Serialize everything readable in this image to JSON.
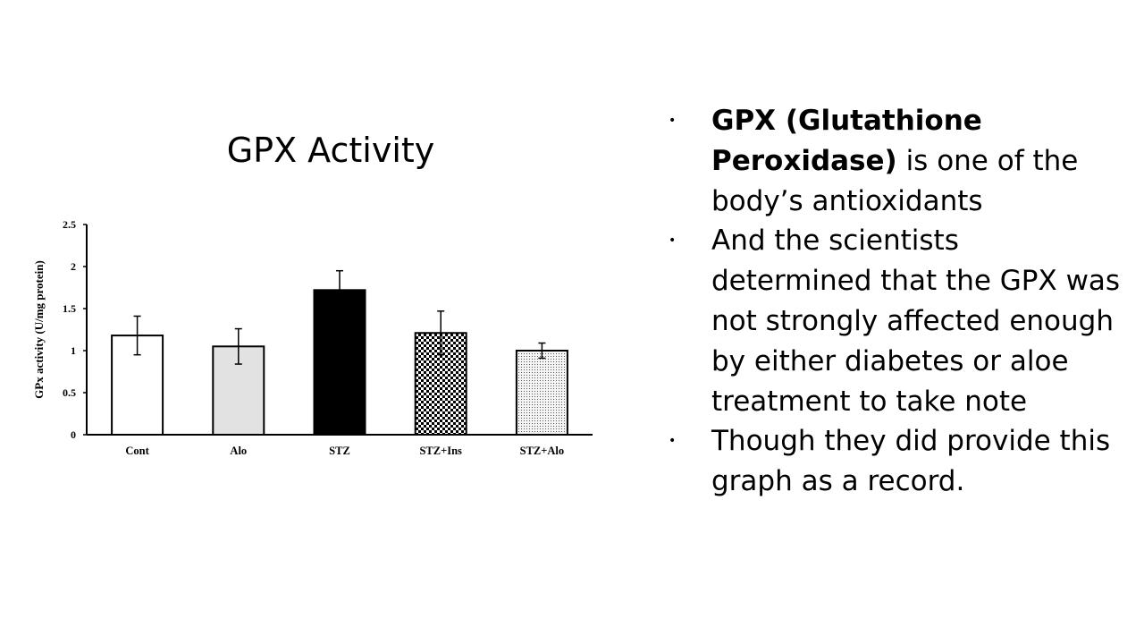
{
  "slide": {
    "title": "GPX Activity"
  },
  "bullets": [
    {
      "bold": "GPX (Glutathione Peroxidase)",
      "text": " is one of the body’s antioxidants"
    },
    {
      "bold": "",
      "text": "And the scientists determined that the GPX was not strongly affected enough by either diabetes or aloe treatment to take note"
    },
    {
      "bold": "",
      "text": "Though they did provide this graph as a record."
    }
  ],
  "bullet_symbol": "•",
  "chart_data": {
    "type": "bar",
    "ylabel": "GPx activity (U/mg protein)",
    "xlabel": "",
    "ylim": [
      0,
      2.5
    ],
    "yticks": [
      "0",
      "0.5",
      "1",
      "1.5",
      "2",
      "2.5"
    ],
    "categories": [
      "Cont",
      "Alo",
      "STZ",
      "STZ+Ins",
      "STZ+Alo"
    ],
    "values": [
      1.18,
      1.05,
      1.72,
      1.21,
      1.0
    ],
    "errors": [
      0.23,
      0.21,
      0.23,
      0.26,
      0.09
    ],
    "fills": [
      "white",
      "lightgray",
      "black",
      "checker",
      "dots"
    ],
    "grid": false
  }
}
